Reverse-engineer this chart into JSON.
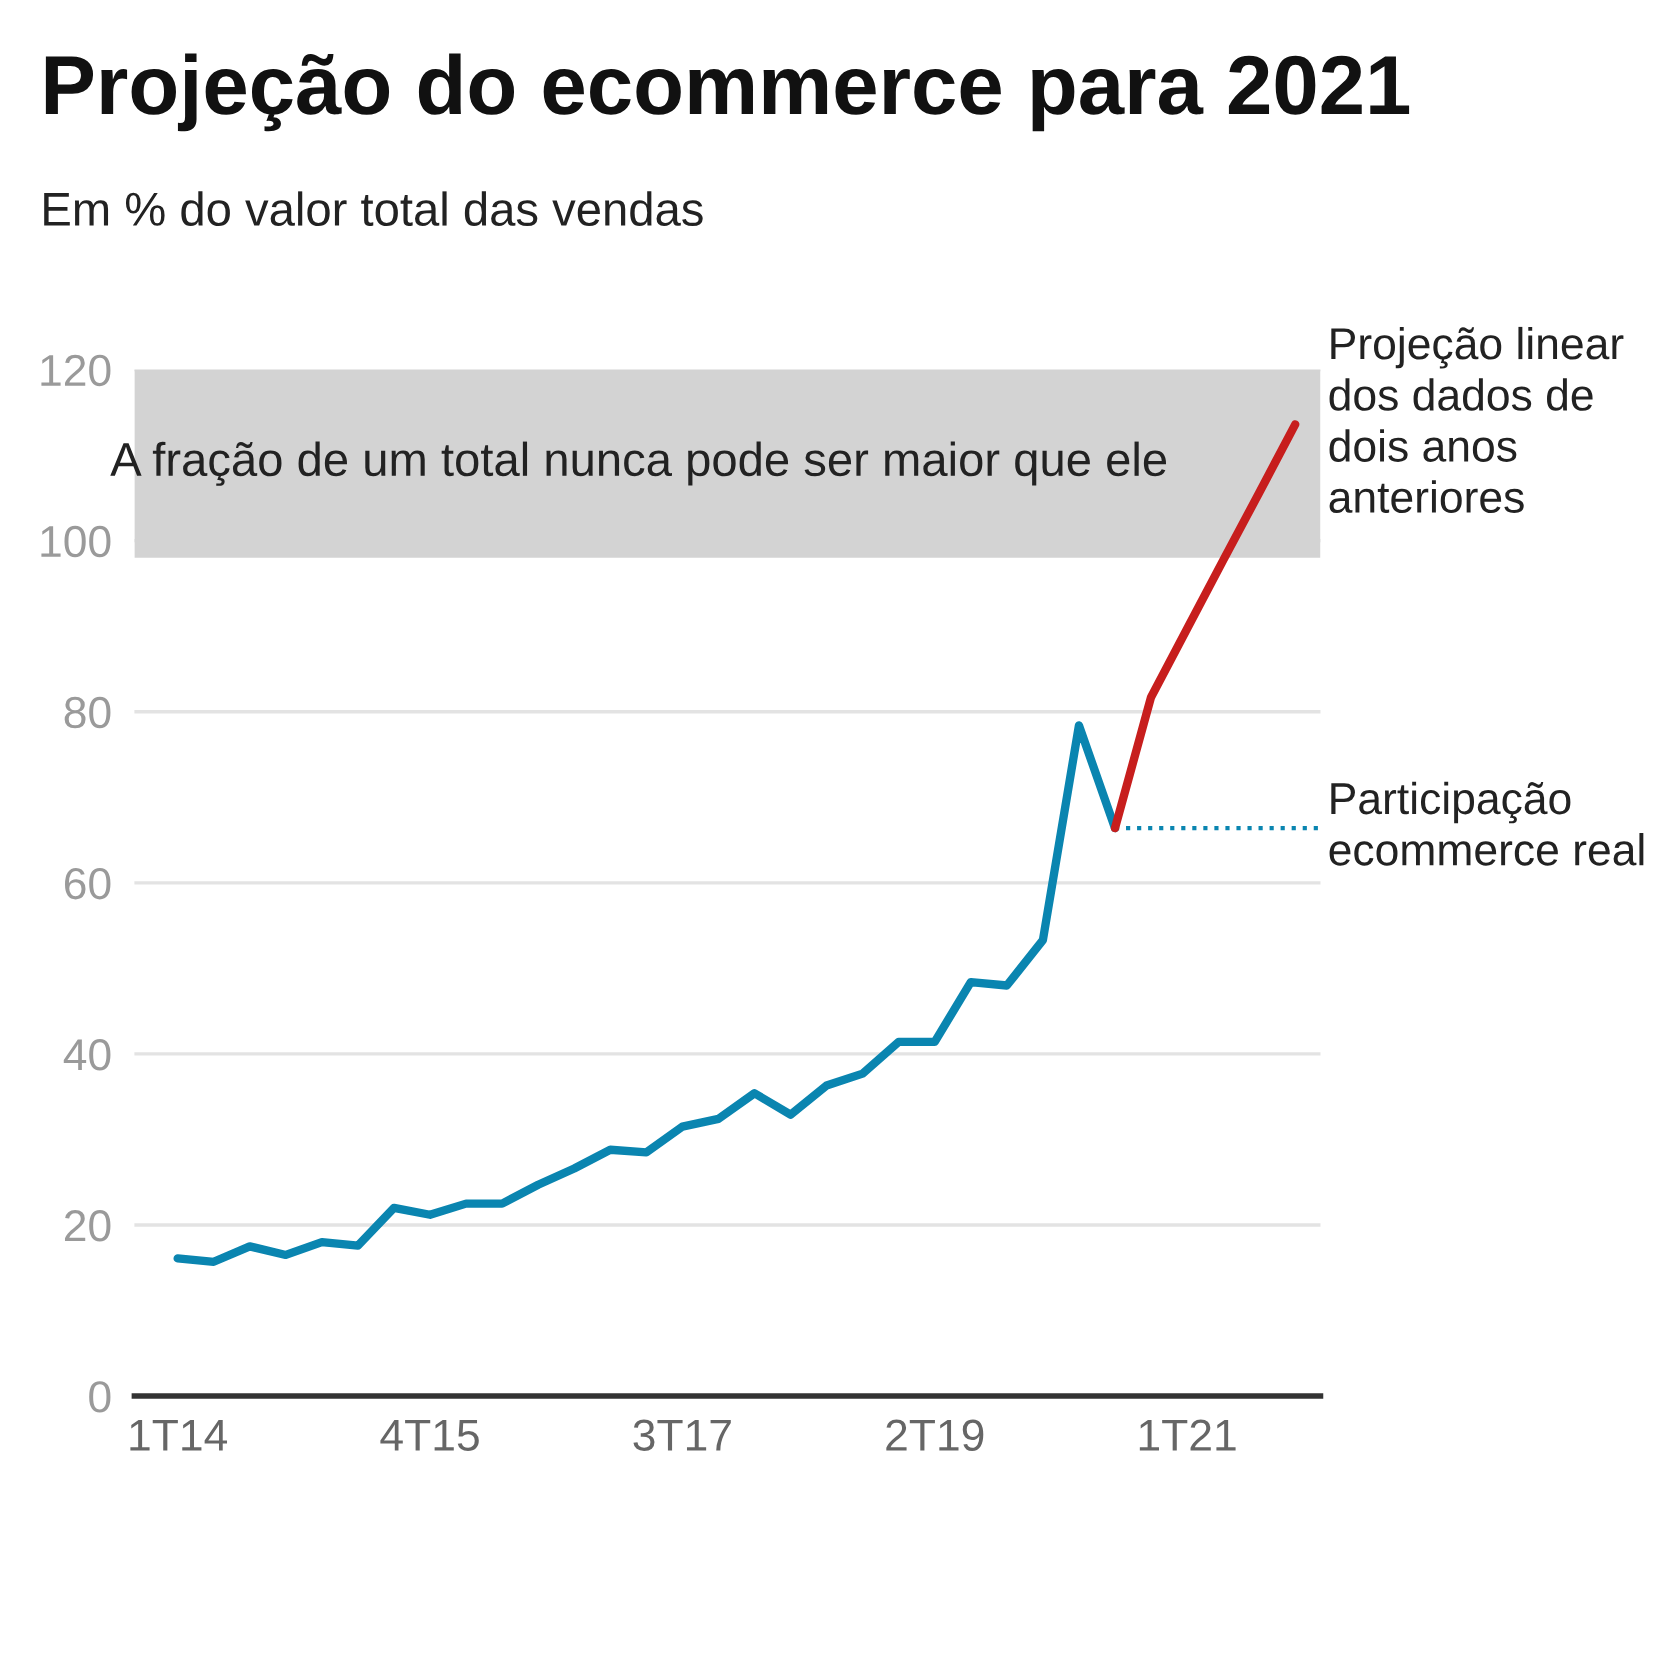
{
  "chart_data": {
    "type": "line",
    "title": "Projeção do ecommerce para 2021",
    "subtitle": "Em % do valor total das vendas",
    "categories": [
      "1T14",
      null,
      null,
      null,
      null,
      null,
      null,
      "4T15",
      null,
      null,
      null,
      null,
      null,
      null,
      "3T17",
      null,
      null,
      null,
      null,
      null,
      null,
      "2T19",
      null,
      null,
      null,
      null,
      null,
      null,
      "1T21",
      null,
      null,
      null
    ],
    "series": [
      {
        "name": "Participação ecommerce real",
        "color": "#0a85b0",
        "values": [
          16.1,
          15.7,
          17.5,
          16.5,
          18.0,
          17.6,
          22.0,
          21.2,
          22.5,
          22.5,
          24.7,
          26.6,
          28.8,
          28.5,
          31.5,
          32.4,
          35.4,
          32.9,
          36.3,
          37.7,
          41.4,
          41.4,
          48.4,
          48.0,
          53.3,
          78.4,
          66.4,
          null,
          null,
          null,
          null,
          null
        ]
      },
      {
        "name": "Projeção linear dos dados de dois anos anteriores",
        "color": "#c71e1d",
        "values": [
          null,
          null,
          null,
          null,
          null,
          null,
          null,
          null,
          null,
          null,
          null,
          null,
          null,
          null,
          null,
          null,
          null,
          null,
          null,
          null,
          null,
          null,
          null,
          null,
          null,
          null,
          66.4,
          81.7,
          89.7,
          97.7,
          105.6,
          113.6
        ]
      }
    ],
    "ylim": [
      0,
      120
    ],
    "yticks": [
      0,
      20,
      40,
      60,
      80,
      100,
      120
    ],
    "grid": "y",
    "line_style": "solid",
    "marker": "none",
    "ref_lines": [
      {
        "axis": "y",
        "value": 66.4,
        "color": "#0a85b0",
        "line_style": "dotted"
      }
    ],
    "bands": [
      {
        "axis": "y",
        "from": 98,
        "to": 120,
        "color": "#d3d3d3",
        "label": "A fração de um total nunca pode ser maior que ele"
      }
    ]
  }
}
